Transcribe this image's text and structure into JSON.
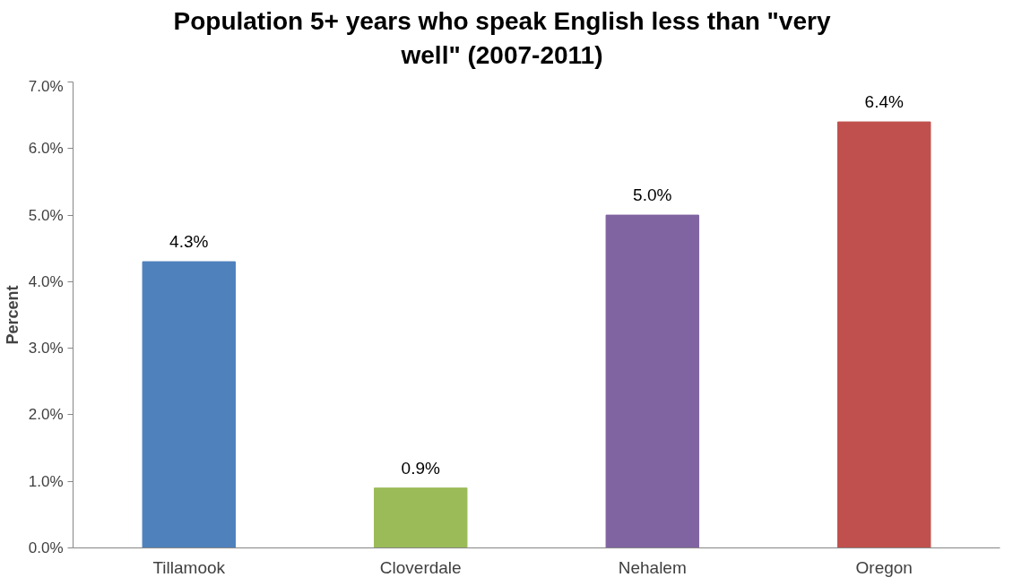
{
  "chart_data": {
    "type": "bar",
    "title": "Population 5+ years who speak English less than \"very well\" (2007-2011)",
    "ylabel": "Percent",
    "categories": [
      "Tillamook",
      "Cloverdale",
      "Nehalem",
      "Oregon"
    ],
    "values": [
      4.3,
      0.9,
      5.0,
      6.4
    ],
    "colors": [
      "#4f81bd",
      "#9bbb59",
      "#8064a2",
      "#c0504d"
    ],
    "value_labels": [
      "4.3%",
      "0.9%",
      "5.0%",
      "6.4%"
    ],
    "ylim": [
      0,
      7
    ],
    "yticks": [
      {
        "value": 0,
        "label": "0.0%"
      },
      {
        "value": 1,
        "label": "1.0%"
      },
      {
        "value": 2,
        "label": "2.0%"
      },
      {
        "value": 3,
        "label": "3.0%"
      },
      {
        "value": 4,
        "label": "4.0%"
      },
      {
        "value": 5,
        "label": "5.0%"
      },
      {
        "value": 6,
        "label": "6.0%"
      },
      {
        "value": 7,
        "label": "7.0%"
      }
    ],
    "grid": false
  }
}
